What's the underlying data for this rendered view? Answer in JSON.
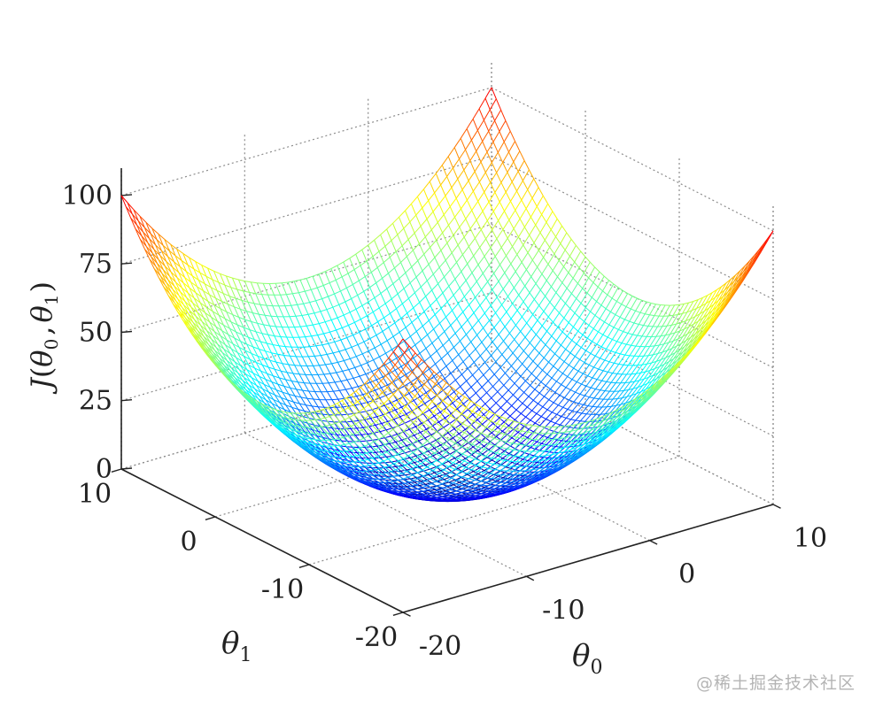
{
  "chart_data": {
    "type": "surface-3d",
    "function": "J(theta0, theta1) = ((theta0 + 5)^2 + (theta1 + 5)^2) / 4.5",
    "zlabel": {
      "base": "J",
      "open": "(",
      "t0": "θ",
      "s0": "0",
      "comma": ",",
      "t1": "θ",
      "s1": "1",
      "close": ")"
    },
    "xlabel": {
      "base": "θ",
      "sub": "0"
    },
    "ylabel": {
      "base": "θ",
      "sub": "1"
    },
    "xlim": [
      -20,
      10
    ],
    "ylim": [
      -20,
      10
    ],
    "zlim": [
      0,
      110
    ],
    "x_ticks": [
      -20,
      -10,
      0,
      10
    ],
    "y_ticks": [
      -20,
      -10,
      0,
      10
    ],
    "z_ticks": [
      0,
      25,
      50,
      75,
      100
    ],
    "x_tick_labels": [
      "-20",
      "-10",
      "0",
      "10"
    ],
    "y_tick_labels": [
      "-20",
      "-10",
      "0",
      "10"
    ],
    "z_tick_labels": [
      "0",
      "25",
      "50",
      "75",
      "100"
    ],
    "grid": true,
    "mesh_divisions": 60,
    "colormap": "jet"
  },
  "watermark": "@稀土掘金技术社区"
}
